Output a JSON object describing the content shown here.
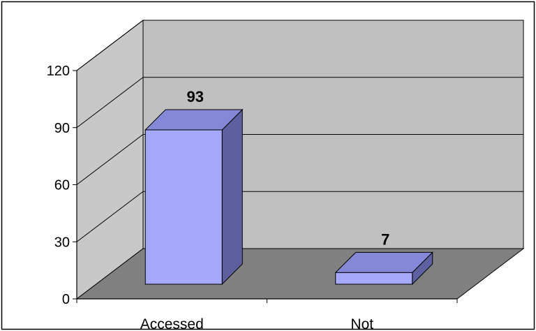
{
  "chart_data": {
    "type": "bar",
    "categories": [
      "Accessed",
      "Not"
    ],
    "values": [
      93,
      7
    ],
    "data_labels": [
      "93",
      "7"
    ],
    "title": "",
    "xlabel": "",
    "ylabel": "",
    "ylim": [
      0,
      120
    ],
    "yticks": [
      "0",
      "30",
      "60",
      "90",
      "120"
    ],
    "grid": true,
    "legend": "none",
    "style": "3d-column"
  },
  "colors": {
    "bar_front": "#a6a9fa",
    "bar_top": "#8587d7",
    "bar_side": "#5e5f9e",
    "back_wall": "#c0c0c0",
    "side_wall": "#c8c8c8",
    "floor": "#808080",
    "gridline": "#000000"
  }
}
